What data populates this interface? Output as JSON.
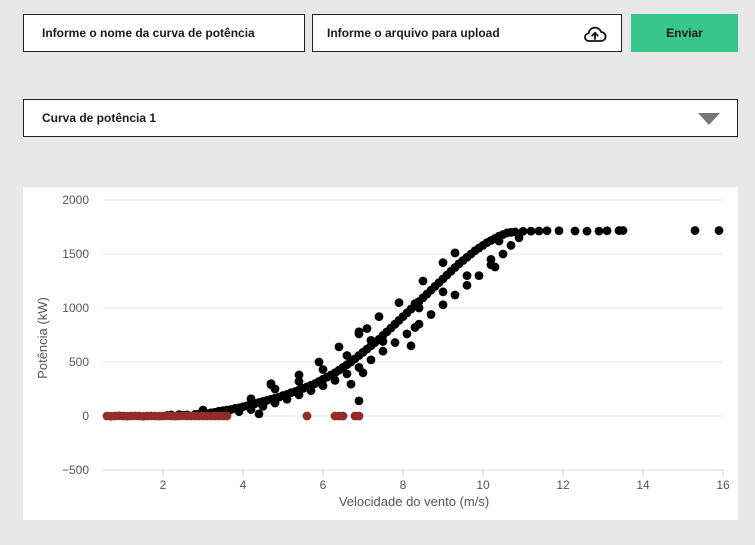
{
  "form": {
    "name_placeholder": "Informe o nome da curva de potência",
    "upload_label": "Informe o arquivo para upload",
    "upload_icon": "cloud-upload-icon",
    "send_label": "Enviar",
    "send_color": "#38c68a"
  },
  "selector": {
    "selected": "Curva de potência 1",
    "caret_icon": "triangle-down-icon"
  },
  "chart_data": {
    "type": "scatter",
    "title": "",
    "xlabel": "Velocidade do vento (m/s)",
    "ylabel": "Potência (kW)",
    "xlim": [
      0.5,
      16
    ],
    "ylim": [
      -500,
      2000
    ],
    "xticks": [
      "2",
      "4",
      "6",
      "8",
      "10",
      "12",
      "14",
      "16"
    ],
    "yticks": [
      "−500",
      "0",
      "500",
      "1000",
      "1500",
      "2000"
    ],
    "grid": true,
    "series": [
      {
        "color": "#000000",
        "points": [
          [
            2.1,
            5
          ],
          [
            2.2,
            10
          ],
          [
            2.4,
            12
          ],
          [
            2.5,
            8
          ],
          [
            2.6,
            10
          ],
          [
            2.8,
            15
          ],
          [
            2.9,
            20
          ],
          [
            3.0,
            25
          ],
          [
            3.1,
            20
          ],
          [
            3.2,
            30
          ],
          [
            3.3,
            35
          ],
          [
            3.4,
            45
          ],
          [
            3.5,
            50
          ],
          [
            3.6,
            55
          ],
          [
            3.7,
            60
          ],
          [
            3.8,
            70
          ],
          [
            3.9,
            75
          ],
          [
            4.0,
            85
          ],
          [
            4.1,
            95
          ],
          [
            4.2,
            105
          ],
          [
            4.3,
            115
          ],
          [
            4.4,
            125
          ],
          [
            4.5,
            135
          ],
          [
            4.6,
            145
          ],
          [
            4.7,
            155
          ],
          [
            4.8,
            165
          ],
          [
            4.9,
            175
          ],
          [
            5.0,
            190
          ],
          [
            5.1,
            200
          ],
          [
            5.2,
            215
          ],
          [
            5.3,
            225
          ],
          [
            5.4,
            240
          ],
          [
            5.5,
            255
          ],
          [
            5.6,
            270
          ],
          [
            5.7,
            285
          ],
          [
            5.8,
            300
          ],
          [
            5.9,
            320
          ],
          [
            6.0,
            340
          ],
          [
            6.1,
            360
          ],
          [
            6.2,
            380
          ],
          [
            6.3,
            400
          ],
          [
            6.4,
            425
          ],
          [
            6.5,
            450
          ],
          [
            6.6,
            475
          ],
          [
            6.7,
            500
          ],
          [
            6.8,
            530
          ],
          [
            6.9,
            560
          ],
          [
            7.0,
            590
          ],
          [
            7.1,
            620
          ],
          [
            7.2,
            650
          ],
          [
            7.3,
            680
          ],
          [
            7.4,
            710
          ],
          [
            7.5,
            745
          ],
          [
            7.6,
            780
          ],
          [
            7.7,
            815
          ],
          [
            7.8,
            850
          ],
          [
            7.9,
            885
          ],
          [
            8.0,
            920
          ],
          [
            8.1,
            955
          ],
          [
            8.2,
            990
          ],
          [
            8.3,
            1025
          ],
          [
            8.4,
            1060
          ],
          [
            8.5,
            1095
          ],
          [
            8.6,
            1130
          ],
          [
            8.7,
            1165
          ],
          [
            8.8,
            1200
          ],
          [
            8.9,
            1235
          ],
          [
            9.0,
            1270
          ],
          [
            9.1,
            1305
          ],
          [
            9.2,
            1340
          ],
          [
            9.3,
            1375
          ],
          [
            9.4,
            1410
          ],
          [
            9.5,
            1440
          ],
          [
            9.6,
            1470
          ],
          [
            9.7,
            1500
          ],
          [
            9.8,
            1530
          ],
          [
            9.9,
            1555
          ],
          [
            10.0,
            1580
          ],
          [
            10.1,
            1605
          ],
          [
            10.2,
            1625
          ],
          [
            10.3,
            1645
          ],
          [
            10.4,
            1665
          ],
          [
            10.5,
            1680
          ],
          [
            10.6,
            1695
          ],
          [
            10.7,
            1700
          ],
          [
            10.8,
            1705
          ],
          [
            11.0,
            1710
          ],
          [
            11.2,
            1712
          ],
          [
            11.4,
            1713
          ],
          [
            11.6,
            1715
          ],
          [
            11.9,
            1715
          ],
          [
            12.3,
            1713
          ],
          [
            12.6,
            1712
          ],
          [
            12.9,
            1712
          ],
          [
            13.1,
            1715
          ],
          [
            13.4,
            1717
          ],
          [
            13.5,
            1717
          ],
          [
            15.3,
            1717
          ],
          [
            15.9,
            1717
          ],
          [
            3.0,
            55
          ],
          [
            3.3,
            15
          ],
          [
            3.6,
            25
          ],
          [
            3.9,
            40
          ],
          [
            4.2,
            60
          ],
          [
            4.5,
            90
          ],
          [
            4.8,
            120
          ],
          [
            5.1,
            155
          ],
          [
            5.4,
            195
          ],
          [
            5.7,
            235
          ],
          [
            6.0,
            280
          ],
          [
            6.3,
            330
          ],
          [
            6.6,
            390
          ],
          [
            6.9,
            450
          ],
          [
            7.2,
            520
          ],
          [
            7.5,
            600
          ],
          [
            7.8,
            680
          ],
          [
            8.1,
            760
          ],
          [
            8.4,
            850
          ],
          [
            8.7,
            940
          ],
          [
            9.0,
            1030
          ],
          [
            9.3,
            1120
          ],
          [
            9.6,
            1210
          ],
          [
            9.9,
            1300
          ],
          [
            10.2,
            1400
          ],
          [
            10.5,
            1500
          ],
          [
            10.7,
            1580
          ],
          [
            10.9,
            1650
          ],
          [
            4.2,
            160
          ],
          [
            4.8,
            250
          ],
          [
            5.4,
            320
          ],
          [
            6.0,
            430
          ],
          [
            6.6,
            560
          ],
          [
            7.2,
            700
          ],
          [
            7.8,
            850
          ],
          [
            8.4,
            1000
          ],
          [
            9.0,
            1150
          ],
          [
            9.6,
            1300
          ],
          [
            10.2,
            1450
          ],
          [
            10.4,
            1620
          ],
          [
            9.0,
            1420
          ],
          [
            8.5,
            1250
          ],
          [
            7.9,
            1050
          ],
          [
            7.4,
            920
          ],
          [
            6.9,
            780
          ],
          [
            6.4,
            640
          ],
          [
            5.9,
            500
          ],
          [
            5.4,
            380
          ],
          [
            4.7,
            300
          ],
          [
            4.4,
            20
          ],
          [
            4.7,
            290
          ],
          [
            6.7,
            295
          ],
          [
            6.9,
            140
          ],
          [
            6.9,
            760
          ],
          [
            7.1,
            810
          ],
          [
            7.0,
            400
          ],
          [
            7.5,
            690
          ],
          [
            8.3,
            820
          ],
          [
            8.3,
            1040
          ],
          [
            8.2,
            650
          ],
          [
            9.3,
            1510
          ],
          [
            10.3,
            1380
          ]
        ]
      },
      {
        "color": "#922b2b",
        "points": [
          [
            0.6,
            0
          ],
          [
            0.7,
            -2
          ],
          [
            0.8,
            0
          ],
          [
            0.9,
            2
          ],
          [
            1.0,
            0
          ],
          [
            1.1,
            -1
          ],
          [
            1.2,
            0
          ],
          [
            1.3,
            1
          ],
          [
            1.4,
            0
          ],
          [
            1.5,
            -2
          ],
          [
            1.6,
            0
          ],
          [
            1.7,
            1
          ],
          [
            1.8,
            0
          ],
          [
            1.9,
            -1
          ],
          [
            2.0,
            0
          ],
          [
            2.1,
            1
          ],
          [
            2.2,
            0
          ],
          [
            2.3,
            -1
          ],
          [
            2.4,
            0
          ],
          [
            2.5,
            1
          ],
          [
            2.6,
            0
          ],
          [
            2.7,
            0
          ],
          [
            2.8,
            0
          ],
          [
            2.9,
            0
          ],
          [
            3.0,
            0
          ],
          [
            3.1,
            0
          ],
          [
            3.2,
            0
          ],
          [
            3.3,
            0
          ],
          [
            3.4,
            0
          ],
          [
            3.5,
            0
          ],
          [
            3.6,
            0
          ],
          [
            5.6,
            0
          ],
          [
            6.3,
            0
          ],
          [
            6.4,
            0
          ],
          [
            6.5,
            0
          ],
          [
            6.8,
            0
          ],
          [
            6.9,
            0
          ]
        ]
      }
    ]
  }
}
